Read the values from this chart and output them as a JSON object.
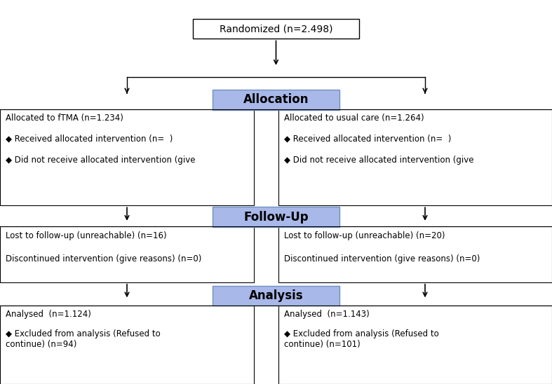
{
  "bg_color": "#ffffff",
  "box_blue_fill": "#a8b8e8",
  "box_blue_edge": "#7090c0",
  "box_white_fill": "#ffffff",
  "box_white_edge": "#000000",
  "arrow_color": "#000000",
  "line_color": "#000000",
  "text_color": "#000000",
  "randomized_text": "Randomized (n=2.498)",
  "allocation_text": "Allocation",
  "followup_text": "Follow-Up",
  "analysis_text": "Analysis",
  "left_alloc_line1": "Allocated to fTMA (n=1.234)",
  "left_alloc_line2": "◆ Received allocated intervention (n=  )",
  "left_alloc_line3": "◆ Did not receive allocated intervention (give",
  "right_alloc_line1": "Allocated to usual care (n=1.264)",
  "right_alloc_line2": "◆ Received allocated intervention (n=  )",
  "right_alloc_line3": "◆ Did not receive allocated intervention (give",
  "left_fu_line1": "Lost to follow-up (unreachable) (n=16)",
  "left_fu_line2": "Discontinued intervention (give reasons) (n=0)",
  "right_fu_line1": "Lost to follow-up (unreachable) (n=20)",
  "right_fu_line2": "Discontinued intervention (give reasons) (n=0)",
  "left_an_line1": "Analysed  (n=1.124)",
  "left_an_line2": "◆ Excluded from analysis (Refused to\ncontinue) (n=94)",
  "right_an_line1": "Analysed  (n=1.143)",
  "right_an_line2": "◆ Excluded from analysis (Refused to\ncontinue) (n=101)"
}
